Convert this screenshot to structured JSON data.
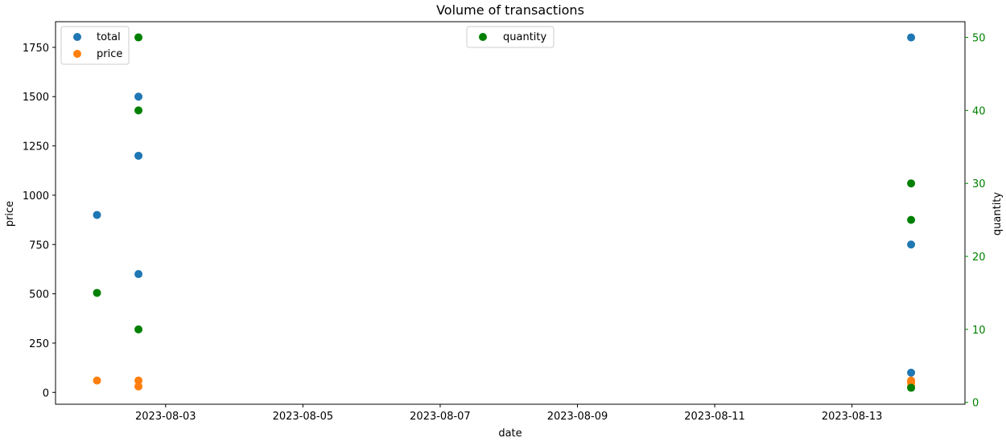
{
  "chart_data": {
    "type": "scatter",
    "title": "Volume of transactions",
    "xlabel": "date",
    "ylabel_left": "price",
    "ylabel_right": "quantity",
    "x_ticks": [
      "2023-08-03",
      "2023-08-05",
      "2023-08-07",
      "2023-08-09",
      "2023-08-11",
      "2023-08-13"
    ],
    "left_y_ticks": [
      0,
      250,
      500,
      750,
      1000,
      1250,
      1500,
      1750
    ],
    "right_y_ticks": [
      0,
      10,
      20,
      30,
      40,
      50
    ],
    "xlim": [
      "2023-08-01T09:30",
      "2023-08-14T15:30"
    ],
    "ylim_left": [
      -60,
      1880
    ],
    "ylim_right": [
      -0.25,
      52.15
    ],
    "right_axis_color": "#008000",
    "series": [
      {
        "name": "total",
        "axis": "left",
        "color": "#1f77b4",
        "points": [
          {
            "x": "2023-08-02T00:00",
            "y": 900
          },
          {
            "x": "2023-08-02T14:30",
            "y": 1500
          },
          {
            "x": "2023-08-02T14:30",
            "y": 1200
          },
          {
            "x": "2023-08-02T14:30",
            "y": 600
          },
          {
            "x": "2023-08-13T20:40",
            "y": 1800
          },
          {
            "x": "2023-08-13T20:40",
            "y": 750
          },
          {
            "x": "2023-08-13T20:40",
            "y": 100
          }
        ]
      },
      {
        "name": "price",
        "axis": "left",
        "color": "#ff7f0e",
        "points": [
          {
            "x": "2023-08-02T00:00",
            "y": 60
          },
          {
            "x": "2023-08-02T14:30",
            "y": 60
          },
          {
            "x": "2023-08-02T14:30",
            "y": 30
          },
          {
            "x": "2023-08-13T20:40",
            "y": 60
          },
          {
            "x": "2023-08-13T20:40",
            "y": 50
          },
          {
            "x": "2023-08-13T20:40",
            "y": 30
          }
        ]
      },
      {
        "name": "quantity",
        "axis": "right",
        "color": "#008000",
        "points": [
          {
            "x": "2023-08-02T00:00",
            "y": 15
          },
          {
            "x": "2023-08-02T14:30",
            "y": 50
          },
          {
            "x": "2023-08-02T14:30",
            "y": 40
          },
          {
            "x": "2023-08-02T14:30",
            "y": 10
          },
          {
            "x": "2023-08-13T20:40",
            "y": 30
          },
          {
            "x": "2023-08-13T20:40",
            "y": 25
          },
          {
            "x": "2023-08-13T20:40",
            "y": 2
          }
        ]
      }
    ],
    "legend_left": {
      "placement": "upper left",
      "entries": [
        "total",
        "price"
      ]
    },
    "legend_right": {
      "placement": "upper center",
      "entries": [
        "quantity"
      ]
    }
  }
}
